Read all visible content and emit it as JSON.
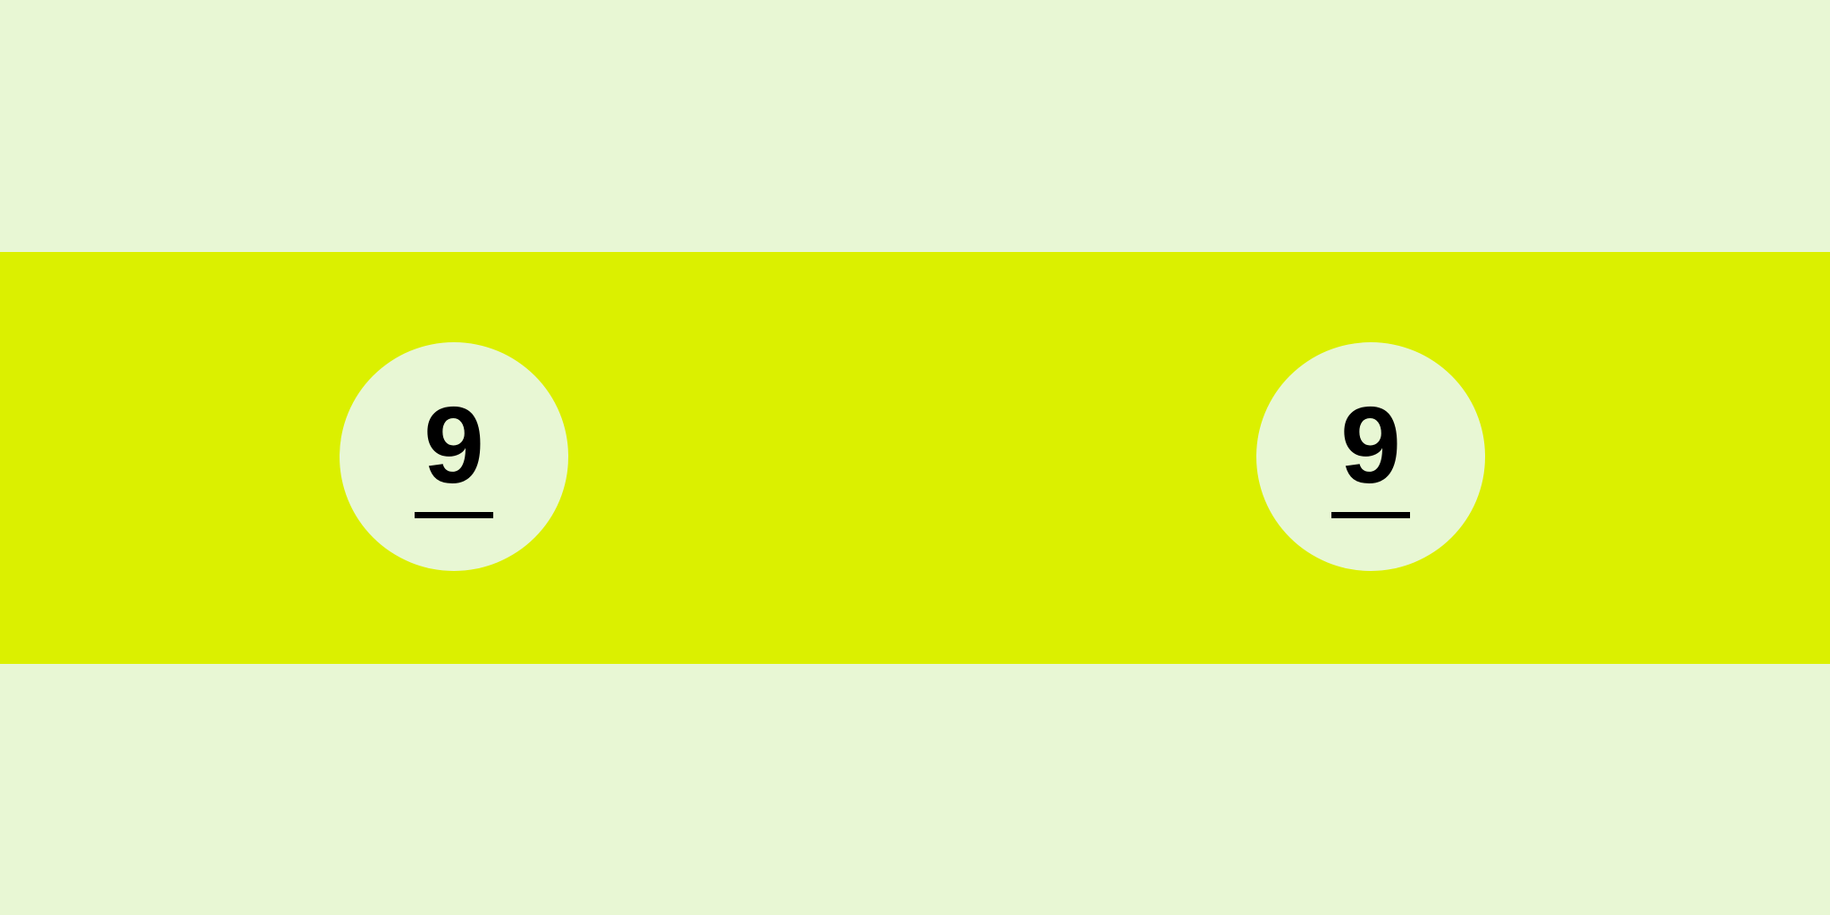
{
  "colors": {
    "background": "#e8f7d4",
    "band": "#dbf000",
    "ball": "#e8f7d4",
    "number": "#000000"
  },
  "balls": [
    {
      "number": "9",
      "underlined": true
    },
    {
      "number": "9",
      "underlined": true
    }
  ]
}
